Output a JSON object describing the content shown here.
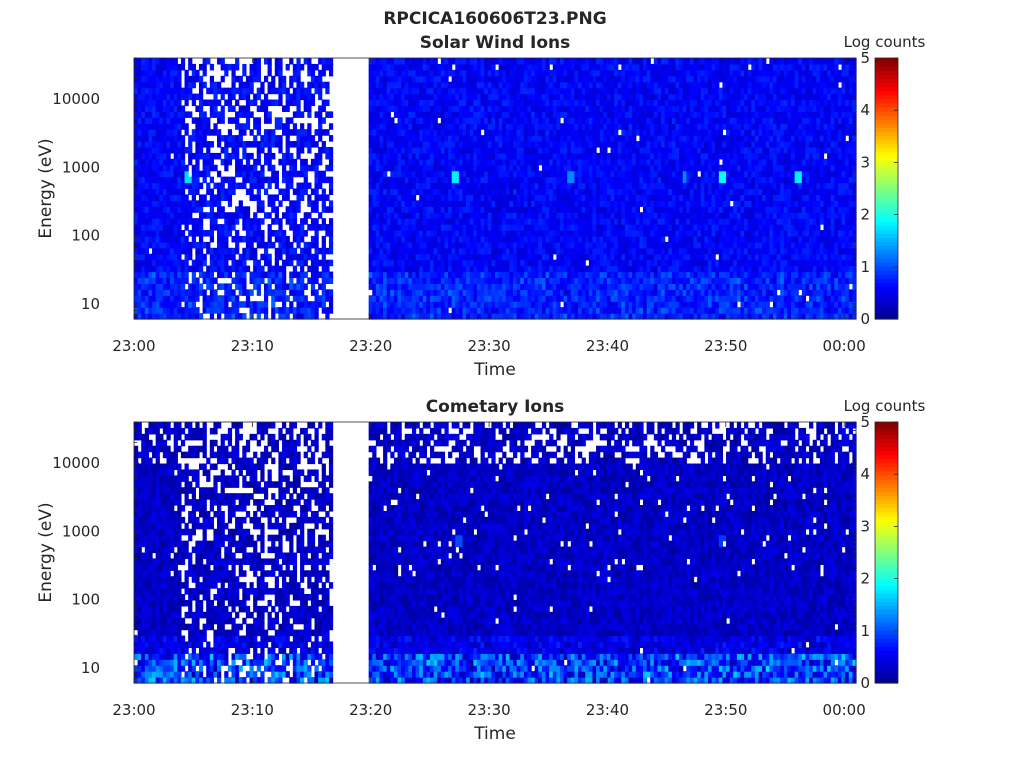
{
  "figure": {
    "title": "RPCICA160606T23.PNG"
  },
  "colors": {
    "colormap": [
      "#00008f",
      "#0000ff",
      "#00ffff",
      "#ffff00",
      "#ff0000",
      "#800000"
    ],
    "gap": "#ffffff",
    "axis": "#262626"
  },
  "chart_data": [
    {
      "type": "heatmap",
      "title": "Solar Wind Ions",
      "xlabel": "Time",
      "ylabel": "Energy (eV)",
      "colorbar_label": "Log counts",
      "x_ticks": [
        "23:00",
        "23:10",
        "23:20",
        "23:30",
        "23:40",
        "23:50",
        "00:00"
      ],
      "x_range": [
        "23:00",
        "00:01"
      ],
      "y_scale": "log",
      "y_ticks": [
        10,
        100,
        1000,
        10000
      ],
      "y_range": [
        6,
        40000
      ],
      "colorbar_ticks": [
        0,
        1,
        2,
        3,
        4,
        5
      ],
      "colorbar_range": [
        0,
        5
      ],
      "data_gaps": [
        {
          "start": "23:16:40",
          "end": "23:19:50"
        }
      ],
      "sparse_interval": {
        "start": "23:04",
        "end": "23:16:40"
      },
      "background_level": 0.6,
      "peaks": [
        {
          "time": "23:04:40",
          "energy": 700,
          "value": 1.7
        },
        {
          "time": "23:27:10",
          "energy": 700,
          "value": 1.8
        },
        {
          "time": "23:37:00",
          "energy": 700,
          "value": 1.3
        },
        {
          "time": "23:46:30",
          "energy": 700,
          "value": 1.3
        },
        {
          "time": "23:49:50",
          "energy": 700,
          "value": 1.9
        },
        {
          "time": "23:56:10",
          "energy": 700,
          "value": 1.8
        }
      ]
    },
    {
      "type": "heatmap",
      "title": "Cometary Ions",
      "xlabel": "Time",
      "ylabel": "Energy (eV)",
      "colorbar_label": "Log counts",
      "x_ticks": [
        "23:00",
        "23:10",
        "23:20",
        "23:30",
        "23:40",
        "23:50",
        "00:00"
      ],
      "x_range": [
        "23:00",
        "00:01"
      ],
      "y_scale": "log",
      "y_ticks": [
        10,
        100,
        1000,
        10000
      ],
      "y_range": [
        6,
        40000
      ],
      "colorbar_ticks": [
        0,
        1,
        2,
        3,
        4,
        5
      ],
      "colorbar_range": [
        0,
        5
      ],
      "data_gaps": [
        {
          "start": "23:16:40",
          "end": "23:19:50"
        }
      ],
      "sparse_interval": {
        "start": "23:04",
        "end": "23:16:40"
      },
      "background_level": 0.3,
      "low_energy_enhancement": {
        "energy_max": 15,
        "value": 1.2
      },
      "peaks": [
        {
          "time": "23:27:20",
          "energy": 700,
          "value": 1.0
        },
        {
          "time": "23:49:40",
          "energy": 700,
          "value": 0.9
        }
      ]
    }
  ]
}
